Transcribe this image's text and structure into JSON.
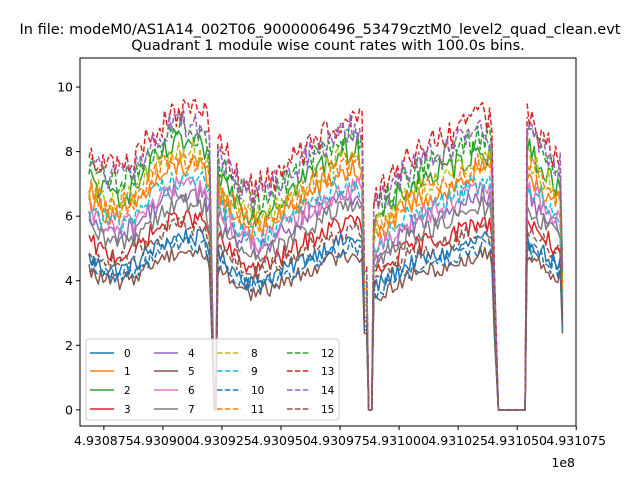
{
  "chart_data": {
    "type": "line",
    "suptitle": "In file: modeM0/AS1A14_002T06_9000006496_53479cztM0_level2_quad_clean.evt",
    "title": "Quadrant 1 module wise count rates with 100.0s bins.",
    "xlabel": "",
    "ylabel": "",
    "x_offset_label": "1e8",
    "xlim": [
      4.9308649,
      4.9310749
    ],
    "ylim": [
      -0.5,
      10.9
    ],
    "x_ticks": [
      4.930875,
      4.9309,
      4.930925,
      4.93095,
      4.930975,
      4.931,
      4.931025,
      4.93105,
      4.931075
    ],
    "x_tick_labels": [
      "4.930875",
      "4.930900",
      "4.930925",
      "4.930950",
      "4.930975",
      "4.931000",
      "4.931025",
      "4.931050",
      "4.931075"
    ],
    "y_ticks": [
      0,
      2,
      4,
      6,
      8,
      10
    ],
    "y_tick_labels": [
      "0",
      "2",
      "4",
      "6",
      "8",
      "10"
    ],
    "grid": false,
    "legend_placement": "lower-left",
    "segments": [
      {
        "x_start": 4.9308687,
        "x_end": 4.9309209,
        "gap_after": true
      },
      {
        "x_start": 4.9309233,
        "x_end": 4.9309863,
        "gap_after": true
      },
      {
        "x_start": 4.9309893,
        "x_end": 4.9310412,
        "gap_after": true
      },
      {
        "x_start": 4.9310542,
        "x_end": 4.93107,
        "gap_after": false
      }
    ],
    "gaps": [
      {
        "x_start": 4.9309209,
        "x_end": 4.9309233
      },
      {
        "x_start": 4.9309863,
        "x_end": 4.9309893
      },
      {
        "x_start": 4.9310412,
        "x_end": 4.9310542
      }
    ],
    "series": [
      {
        "name": "0",
        "color": "#1f77b4",
        "style": "solid",
        "base": 4.7
      },
      {
        "name": "1",
        "color": "#ff7f0e",
        "style": "solid",
        "base": 6.6
      },
      {
        "name": "2",
        "color": "#2ca02c",
        "style": "solid",
        "base": 7.2
      },
      {
        "name": "3",
        "color": "#d62728",
        "style": "solid",
        "base": 5.2
      },
      {
        "name": "4",
        "color": "#9467bd",
        "style": "solid",
        "base": 5.9
      },
      {
        "name": "5",
        "color": "#8c564b",
        "style": "solid",
        "base": 4.3
      },
      {
        "name": "6",
        "color": "#e377c2",
        "style": "solid",
        "base": 6.1
      },
      {
        "name": "7",
        "color": "#7f7f7f",
        "style": "solid",
        "base": 5.6
      },
      {
        "name": "8",
        "color": "#bcbd22",
        "style": "dashed",
        "base": 7.0
      },
      {
        "name": "9",
        "color": "#17becf",
        "style": "dashed",
        "base": 6.3
      },
      {
        "name": "10",
        "color": "#1f77b4",
        "style": "dashed",
        "base": 4.5
      },
      {
        "name": "11",
        "color": "#ff7f0e",
        "style": "dashed",
        "base": 6.8
      },
      {
        "name": "12",
        "color": "#2ca02c",
        "style": "dashed",
        "base": 7.6
      },
      {
        "name": "13",
        "color": "#d62728",
        "style": "dashed",
        "base": 8.1
      },
      {
        "name": "14",
        "color": "#9467bd",
        "style": "dashed",
        "base": 7.8
      },
      {
        "name": "15",
        "color": "#8c564b",
        "style": "dashed",
        "base": 5.0
      }
    ]
  }
}
